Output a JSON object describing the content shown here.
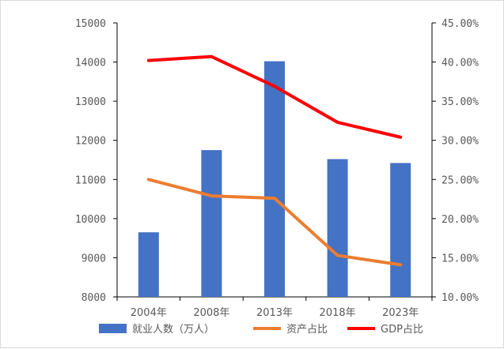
{
  "chart_data": {
    "type": "bar",
    "categories": [
      "2004年",
      "2008年",
      "2013年",
      "2018年",
      "2023年"
    ],
    "series": [
      {
        "name": "就业人数（万人）",
        "type": "bar",
        "axis": "left",
        "color": "#4472C4",
        "values": [
          9650,
          11750,
          14020,
          11520,
          11420
        ]
      },
      {
        "name": "资产占比",
        "type": "line",
        "axis": "right",
        "color": "#ED7D31",
        "values": [
          0.25,
          0.229,
          0.226,
          0.153,
          0.141
        ]
      },
      {
        "name": "GDP占比",
        "type": "line",
        "axis": "right",
        "color": "#FF0000",
        "values": [
          0.402,
          0.407,
          0.369,
          0.323,
          0.304
        ]
      }
    ],
    "y_left": {
      "ylim": [
        8000,
        15000
      ],
      "ticks": [
        "8000",
        "9000",
        "10000",
        "11000",
        "12000",
        "13000",
        "14000",
        "15000"
      ]
    },
    "y_right": {
      "ylim": [
        0.1,
        0.45
      ],
      "ticks": [
        "10.00%",
        "15.00%",
        "20.00%",
        "25.00%",
        "30.00%",
        "35.00%",
        "40.00%",
        "45.00%"
      ]
    },
    "grid": false,
    "legend_position": "bottom"
  }
}
